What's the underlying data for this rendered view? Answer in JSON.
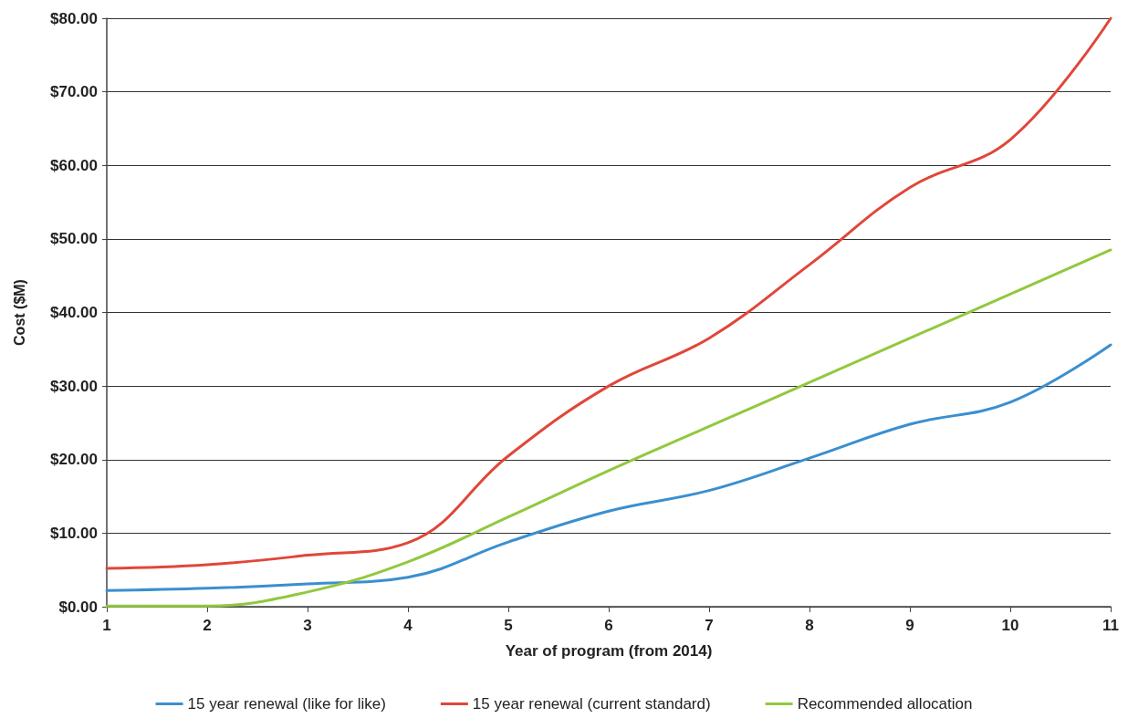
{
  "chart_data": {
    "type": "line",
    "xlabel": "Year of program (from 2014)",
    "ylabel": "Cost ($M)",
    "x": [
      1,
      2,
      3,
      4,
      5,
      6,
      7,
      8,
      9,
      10,
      11
    ],
    "series": [
      {
        "name": "15 year renewal (like for like)",
        "color": "#3a8fd0",
        "values": [
          2.2,
          2.5,
          3.1,
          4.0,
          8.8,
          13.0,
          15.8,
          20.2,
          24.8,
          27.8,
          35.6
        ]
      },
      {
        "name": "15 year renewal (current standard)",
        "color": "#e0473a",
        "values": [
          5.2,
          5.7,
          7.0,
          8.7,
          20.5,
          30.0,
          36.5,
          46.5,
          57.0,
          63.5,
          80.0
        ]
      },
      {
        "name": "Recommended allocation",
        "color": "#92c83e",
        "values": [
          0.1,
          0.1,
          2.0,
          6.1,
          12.2,
          18.5,
          24.5,
          30.5,
          36.5,
          42.5,
          48.5
        ]
      }
    ],
    "xlim": [
      1,
      11
    ],
    "xticks": [
      1,
      2,
      3,
      4,
      5,
      6,
      7,
      8,
      9,
      10,
      11
    ],
    "ylim": [
      0,
      80
    ],
    "yticks": [
      {
        "value": 0,
        "label": "$0.00"
      },
      {
        "value": 10,
        "label": "$10.00"
      },
      {
        "value": 20,
        "label": "$20.00"
      },
      {
        "value": 30,
        "label": "$30.00"
      },
      {
        "value": 40,
        "label": "$40.00"
      },
      {
        "value": 50,
        "label": "$50.00"
      },
      {
        "value": 60,
        "label": "$60.00"
      },
      {
        "value": 70,
        "label": "$70.00"
      },
      {
        "value": 80,
        "label": "$80.00"
      }
    ],
    "grid": "y",
    "legend": "bottom",
    "marker": "none",
    "line_style": "solid"
  }
}
